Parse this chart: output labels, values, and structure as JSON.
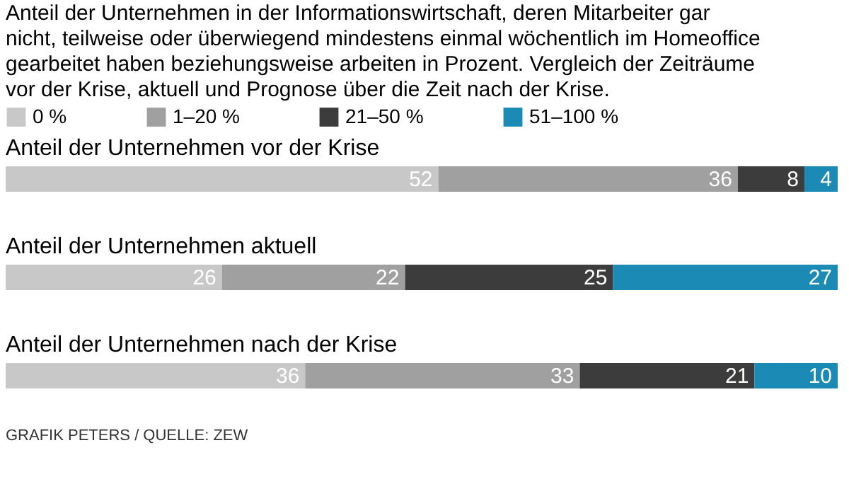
{
  "chart_data": {
    "type": "bar",
    "orientation": "horizontal",
    "stacked": true,
    "data_labels": true,
    "legend": "top left",
    "grid": false,
    "tick_labels": false,
    "title": "Anteil der Unternehmen in der Informationswirtschaft, deren Mitarbeiter gar nicht, teilweise oder überwiegend mindestens einmal wöchentlich im Homeoffice gearbeitet haben beziehungsweise arbeiten in Prozent. Vergleich der Zeiträume vor der Krise, aktuell und Prognose über die Zeit nach der Krise.",
    "categories": [
      "Anteil der Unternehmen vor der Krise",
      "Anteil der Unternehmen aktuell",
      "Anteil der Unternehmen nach der Krise"
    ],
    "xlim": [
      0,
      100
    ],
    "series": [
      {
        "name": "0 %",
        "color": "#c8c8c8",
        "values": [
          52,
          26,
          36
        ]
      },
      {
        "name": "1–20 %",
        "color": "#a0a0a0",
        "values": [
          36,
          22,
          33
        ]
      },
      {
        "name": "21–50 %",
        "color": "#3c3c3c",
        "values": [
          8,
          25,
          21
        ]
      },
      {
        "name": "51–100 %",
        "color": "#1b8ab4",
        "values": [
          4,
          27,
          10
        ]
      }
    ],
    "annotations": [
      "GRAFIK PETERS / QUELLE: ZEW"
    ]
  }
}
